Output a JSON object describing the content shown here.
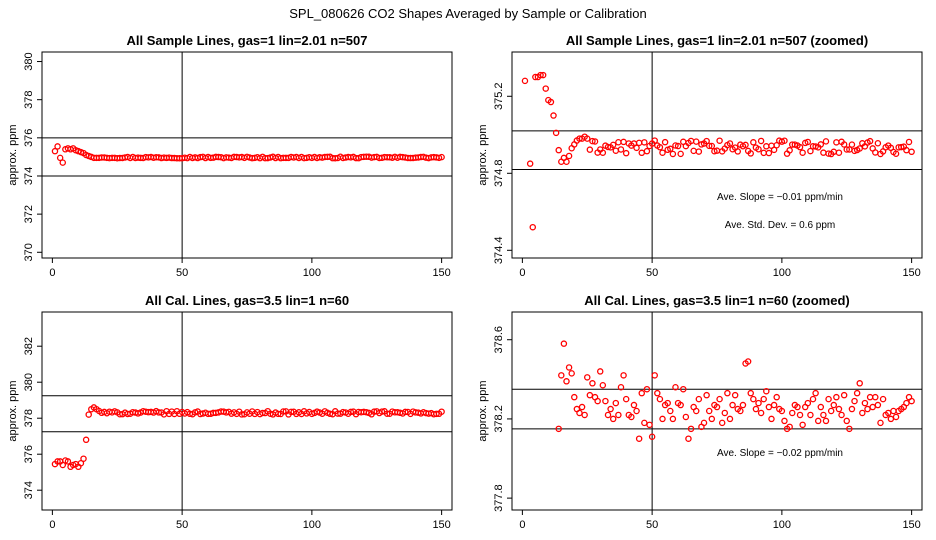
{
  "figure": {
    "title": "SPL_080626  CO2 Shapes Averaged by Sample or Calibration"
  },
  "chart_data": [
    {
      "type": "scatter",
      "title": "All Sample Lines, gas=1 lin=2.01 n=507",
      "xlabel": "",
      "ylabel": "approx. ppm",
      "xlim": [
        -4,
        154
      ],
      "ylim": [
        369.7,
        380.5
      ],
      "xticks": [
        0,
        50,
        100,
        150
      ],
      "yticks": [
        370,
        372,
        374,
        376,
        378,
        380
      ],
      "hlines": [
        376,
        374
      ],
      "vline": 50,
      "marker_color": "#ff0000",
      "points": {
        "leading": [
          [
            1,
            375.3
          ],
          [
            2,
            375.55
          ],
          [
            3,
            374.95
          ],
          [
            4,
            374.7
          ],
          [
            5,
            375.4
          ],
          [
            6,
            375.45
          ],
          [
            7,
            375.4
          ],
          [
            8,
            375.45
          ],
          [
            9,
            375.35
          ],
          [
            10,
            375.3
          ],
          [
            11,
            375.25
          ],
          [
            12,
            375.2
          ],
          [
            13,
            375.1
          ],
          [
            14,
            375.05
          ],
          [
            15,
            375.0
          ],
          [
            16,
            374.95
          ],
          [
            17,
            374.95
          ],
          [
            18,
            374.95
          ],
          [
            19,
            374.97
          ],
          [
            20,
            374.97
          ]
        ],
        "tail_from": 21,
        "tail_to": 150,
        "tail_value": 374.97,
        "tail_jitter": 0.04
      }
    },
    {
      "type": "scatter",
      "title": "All Sample Lines, gas=1 lin=2.01 n=507 (zoomed)",
      "xlabel": "",
      "ylabel": "approx. ppm",
      "xlim": [
        -4,
        154
      ],
      "ylim": [
        374.36,
        375.43
      ],
      "xticks": [
        0,
        50,
        100,
        150
      ],
      "yticks": [
        374.4,
        374.8,
        375.2
      ],
      "hlines": [
        375.02,
        374.82
      ],
      "vline": 50,
      "marker_color": "#ff0000",
      "annotations": [
        "Ave. Slope = −0.01  ppm/min",
        "Ave. Std. Dev. = 0.6  ppm"
      ],
      "points": {
        "leading": [
          [
            1,
            375.28
          ],
          [
            3,
            374.85
          ],
          [
            4,
            374.52
          ],
          [
            5,
            375.3
          ],
          [
            6,
            375.3
          ],
          [
            7,
            375.31
          ],
          [
            8,
            375.31
          ],
          [
            9,
            375.24
          ],
          [
            10,
            375.18
          ],
          [
            11,
            375.17
          ],
          [
            12,
            375.1
          ],
          [
            13,
            375.01
          ],
          [
            14,
            374.92
          ],
          [
            15,
            374.86
          ],
          [
            16,
            374.88
          ],
          [
            17,
            374.86
          ],
          [
            18,
            374.89
          ],
          [
            19,
            374.93
          ],
          [
            20,
            374.95
          ],
          [
            21,
            374.97
          ],
          [
            22,
            374.98
          ],
          [
            23,
            374.98
          ],
          [
            24,
            374.99
          ],
          [
            25,
            374.98
          ]
        ],
        "tail_from": 26,
        "tail_to": 150,
        "tail_value": 374.935,
        "tail_jitter": 0.035
      }
    },
    {
      "type": "scatter",
      "title": "All Cal. Lines, gas=3.5 lin=1 n=60",
      "xlabel": "",
      "ylabel": "approx. ppm",
      "xlim": [
        -4,
        154
      ],
      "ylim": [
        372.9,
        383.9
      ],
      "xticks": [
        0,
        50,
        100,
        150
      ],
      "yticks": [
        374,
        376,
        378,
        380,
        382
      ],
      "hlines": [
        379.25,
        377.25
      ],
      "vline": 50,
      "marker_color": "#ff0000",
      "points": {
        "leading": [
          [
            1,
            375.45
          ],
          [
            2,
            375.6
          ],
          [
            3,
            375.6
          ],
          [
            4,
            375.4
          ],
          [
            5,
            375.65
          ],
          [
            6,
            375.6
          ],
          [
            7,
            375.3
          ],
          [
            8,
            375.4
          ],
          [
            9,
            375.45
          ],
          [
            10,
            375.3
          ],
          [
            11,
            375.5
          ],
          [
            12,
            375.75
          ],
          [
            13,
            376.8
          ],
          [
            14,
            378.2
          ],
          [
            15,
            378.5
          ],
          [
            16,
            378.6
          ],
          [
            17,
            378.5
          ],
          [
            18,
            378.4
          ],
          [
            19,
            378.3
          ],
          [
            20,
            378.35
          ]
        ],
        "tail_from": 21,
        "tail_to": 150,
        "tail_value": 378.3,
        "tail_jitter": 0.09
      }
    },
    {
      "type": "scatter",
      "title": "All Cal. Lines, gas=3.5 lin=1 n=60 (zoomed)",
      "xlabel": "",
      "ylabel": "approx. ppm",
      "xlim": [
        -4,
        154
      ],
      "ylim": [
        377.74,
        378.74
      ],
      "xticks": [
        0,
        50,
        100,
        150
      ],
      "yticks": [
        377.8,
        378.2,
        378.6
      ],
      "hlines": [
        378.35,
        378.15
      ],
      "vline": 50,
      "marker_color": "#ff0000",
      "annotations": [
        "Ave. Slope = −0.02  ppm/min"
      ],
      "points": {
        "leading": [
          [
            14,
            378.15
          ],
          [
            15,
            378.42
          ],
          [
            16,
            378.58
          ],
          [
            17,
            378.39
          ],
          [
            18,
            378.46
          ],
          [
            19,
            378.43
          ],
          [
            20,
            378.31
          ],
          [
            21,
            378.25
          ],
          [
            22,
            378.23
          ],
          [
            23,
            378.26
          ],
          [
            24,
            378.22
          ],
          [
            25,
            378.41
          ],
          [
            26,
            378.32
          ],
          [
            27,
            378.38
          ],
          [
            28,
            378.31
          ],
          [
            29,
            378.29
          ],
          [
            30,
            378.44
          ],
          [
            31,
            378.37
          ],
          [
            32,
            378.29
          ],
          [
            33,
            378.22
          ],
          [
            34,
            378.25
          ],
          [
            35,
            378.2
          ],
          [
            36,
            378.28
          ],
          [
            37,
            378.22
          ],
          [
            38,
            378.36
          ],
          [
            39,
            378.42
          ],
          [
            40,
            378.3
          ],
          [
            41,
            378.22
          ],
          [
            42,
            378.21
          ],
          [
            43,
            378.27
          ],
          [
            44,
            378.24
          ],
          [
            45,
            378.1
          ],
          [
            46,
            378.33
          ],
          [
            47,
            378.18
          ],
          [
            48,
            378.35
          ],
          [
            49,
            378.17
          ],
          [
            50,
            378.11
          ],
          [
            51,
            378.42
          ],
          [
            52,
            378.33
          ],
          [
            53,
            378.3
          ],
          [
            54,
            378.2
          ],
          [
            55,
            378.27
          ],
          [
            56,
            378.28
          ],
          [
            57,
            378.24
          ],
          [
            58,
            378.2
          ],
          [
            59,
            378.36
          ],
          [
            60,
            378.28
          ],
          [
            61,
            378.27
          ],
          [
            62,
            378.35
          ],
          [
            63,
            378.21
          ],
          [
            64,
            378.1
          ],
          [
            65,
            378.15
          ],
          [
            66,
            378.26
          ],
          [
            67,
            378.24
          ],
          [
            68,
            378.3
          ],
          [
            69,
            378.16
          ],
          [
            70,
            378.18
          ],
          [
            71,
            378.32
          ],
          [
            72,
            378.24
          ],
          [
            73,
            378.2
          ],
          [
            74,
            378.27
          ],
          [
            75,
            378.26
          ],
          [
            76,
            378.3
          ],
          [
            77,
            378.18
          ],
          [
            78,
            378.23
          ],
          [
            79,
            378.33
          ],
          [
            80,
            378.2
          ],
          [
            81,
            378.27
          ],
          [
            82,
            378.32
          ],
          [
            83,
            378.25
          ],
          [
            84,
            378.24
          ],
          [
            85,
            378.27
          ],
          [
            86,
            378.48
          ],
          [
            87,
            378.49
          ],
          [
            88,
            378.33
          ],
          [
            89,
            378.3
          ],
          [
            90,
            378.25
          ],
          [
            91,
            378.28
          ],
          [
            92,
            378.23
          ],
          [
            93,
            378.3
          ],
          [
            94,
            378.34
          ],
          [
            95,
            378.26
          ],
          [
            96,
            378.2
          ],
          [
            97,
            378.27
          ],
          [
            98,
            378.31
          ],
          [
            99,
            378.25
          ],
          [
            100,
            378.24
          ],
          [
            101,
            378.19
          ],
          [
            102,
            378.15
          ],
          [
            103,
            378.16
          ],
          [
            104,
            378.23
          ],
          [
            105,
            378.27
          ],
          [
            106,
            378.26
          ],
          [
            107,
            378.22
          ],
          [
            108,
            378.17
          ],
          [
            109,
            378.26
          ],
          [
            110,
            378.28
          ],
          [
            111,
            378.22
          ],
          [
            112,
            378.3
          ],
          [
            113,
            378.33
          ],
          [
            114,
            378.19
          ],
          [
            115,
            378.26
          ],
          [
            116,
            378.22
          ],
          [
            117,
            378.19
          ],
          [
            118,
            378.3
          ],
          [
            119,
            378.24
          ],
          [
            120,
            378.27
          ],
          [
            121,
            378.31
          ],
          [
            122,
            378.25
          ],
          [
            123,
            378.22
          ],
          [
            124,
            378.32
          ],
          [
            125,
            378.19
          ],
          [
            126,
            378.15
          ],
          [
            127,
            378.25
          ],
          [
            128,
            378.29
          ],
          [
            129,
            378.33
          ],
          [
            130,
            378.38
          ],
          [
            131,
            378.23
          ],
          [
            132,
            378.28
          ],
          [
            133,
            378.25
          ],
          [
            134,
            378.31
          ],
          [
            135,
            378.26
          ],
          [
            136,
            378.31
          ],
          [
            137,
            378.27
          ],
          [
            138,
            378.18
          ],
          [
            139,
            378.3
          ],
          [
            140,
            378.22
          ],
          [
            141,
            378.23
          ],
          [
            142,
            378.2
          ],
          [
            143,
            378.24
          ],
          [
            144,
            378.21
          ],
          [
            145,
            378.24
          ],
          [
            146,
            378.25
          ],
          [
            147,
            378.26
          ],
          [
            148,
            378.28
          ],
          [
            149,
            378.31
          ],
          [
            150,
            378.29
          ]
        ],
        "tail_from": 0,
        "tail_to": -1,
        "tail_value": 0,
        "tail_jitter": 0
      }
    }
  ]
}
